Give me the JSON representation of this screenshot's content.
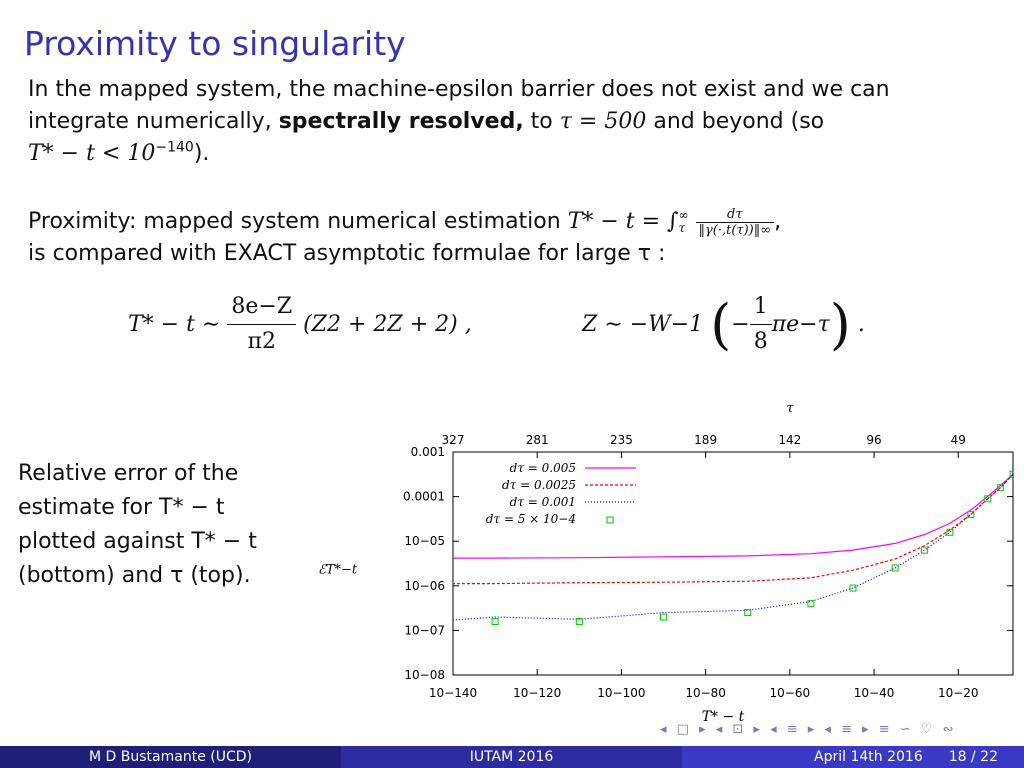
{
  "slide": {
    "title": "Proximity to singularity"
  },
  "para1": {
    "line1": "In the mapped system, the machine-epsilon barrier does not exist and we can",
    "line2_a": "integrate numerically, ",
    "line2_bold": "spectrally resolved,",
    "line2_b": " to ",
    "line2_math": "τ = 500",
    "line2_c": " and beyond (so",
    "line3_math": "T* − t < 10",
    "line3_exp": "−140",
    "line3_end": ")."
  },
  "para2": {
    "line1_a": "Proximity: mapped system numerical estimation ",
    "line1_math": "T* − t = ∫",
    "int_upper": "∞",
    "int_lower": "τ",
    "frac_num": "dτ",
    "frac_den": "‖γ(·,t(τ))‖∞",
    "line1_end": ",",
    "line2": "is compared with EXACT asymptotic formulae for large τ :"
  },
  "equation": {
    "left_lhs": "T* − t ∼",
    "left_num": "8e−Z",
    "left_den": "π2",
    "left_tail": "(Z2 + 2Z + 2) ,",
    "right_lhs": "Z ∼ −W−1",
    "right_inner_pre": "−",
    "right_num": "1",
    "right_den": "8",
    "right_inner_post": "πe−τ",
    "right_end": "."
  },
  "side_text": {
    "line1": "Relative error of the",
    "line2": "estimate for T* − t",
    "line3": "plotted against T* − t",
    "line4": "(bottom) and τ (top)."
  },
  "chart_data": {
    "type": "line",
    "top_axis_label": "τ",
    "bottom_axis_label": "T* − t",
    "y_axis_label": "ℰT*−t",
    "y_log": true,
    "ylim_exp": [
      -8,
      -3
    ],
    "y_ticks": [
      "0.001",
      "0.0001",
      "10−05",
      "10−06",
      "10−07",
      "10−08"
    ],
    "x_log": true,
    "xlim_exp": [
      -140,
      -7
    ],
    "x_ticks": [
      "10−140",
      "10−120",
      "10−100",
      "10−80",
      "10−60",
      "10−40",
      "10−20"
    ],
    "x_tick_exps": [
      -140,
      -120,
      -100,
      -80,
      -60,
      -40,
      -20
    ],
    "top_ticks": [
      "327",
      "281",
      "235",
      "189",
      "142",
      "96",
      "49"
    ],
    "top_tick_exps": [
      -140,
      -120,
      -100,
      -80,
      -60,
      -40,
      -20
    ],
    "series": [
      {
        "name": "dτ = 0.005",
        "color": "#ff00ff",
        "style": "solid",
        "x_exp": [
          -145,
          -130,
          -110,
          -90,
          -70,
          -55,
          -45,
          -35,
          -28,
          -22,
          -17,
          -13,
          -10,
          -7
        ],
        "y_exp": [
          -5.38,
          -5.38,
          -5.37,
          -5.35,
          -5.33,
          -5.28,
          -5.2,
          -5.05,
          -4.85,
          -4.6,
          -4.3,
          -4.0,
          -3.75,
          -3.5
        ]
      },
      {
        "name": "dτ = 0.0025",
        "color": "#ff0000",
        "style": "dashed",
        "x_exp": [
          -145,
          -130,
          -110,
          -90,
          -70,
          -55,
          -45,
          -35,
          -28,
          -22,
          -17,
          -13,
          -10,
          -7
        ],
        "y_exp": [
          -5.95,
          -5.95,
          -5.93,
          -5.92,
          -5.9,
          -5.82,
          -5.65,
          -5.4,
          -5.1,
          -4.75,
          -4.4,
          -4.05,
          -3.8,
          -3.5
        ]
      },
      {
        "name": "dτ = 0.001",
        "color": "#0000ff",
        "style": "dotted",
        "x_exp": [
          -145,
          -130,
          -110,
          -90,
          -70,
          -55,
          -45,
          -35,
          -28,
          -22,
          -17,
          -13,
          -10,
          -7
        ],
        "y_exp": [
          -6.8,
          -6.7,
          -6.75,
          -6.6,
          -6.55,
          -6.35,
          -6.05,
          -5.6,
          -5.2,
          -4.8,
          -4.4,
          -4.05,
          -3.8,
          -3.5
        ]
      },
      {
        "name": "dτ = 5 × 10−4",
        "color": "#00cc00",
        "style": "points",
        "x_exp": [
          -145,
          -130,
          -110,
          -90,
          -70,
          -55,
          -45,
          -35,
          -28,
          -22,
          -17,
          -13,
          -10,
          -7
        ],
        "y_exp": [
          -6.85,
          -6.8,
          -6.8,
          -6.7,
          -6.6,
          -6.4,
          -6.05,
          -5.6,
          -5.2,
          -4.8,
          -4.4,
          -4.05,
          -3.8,
          -3.5
        ]
      }
    ]
  },
  "footer": {
    "author": "M D Bustamante (UCD)",
    "event": "IUTAM 2016",
    "date": "April 14th 2016",
    "page": "18 / 22"
  },
  "nav": {
    "symbols": "◂ □ ▸ ◂ ⊡ ▸ ◂ ≡ ▸ ◂ ≡ ▸ ≡ ∽ ♡ ∾"
  }
}
